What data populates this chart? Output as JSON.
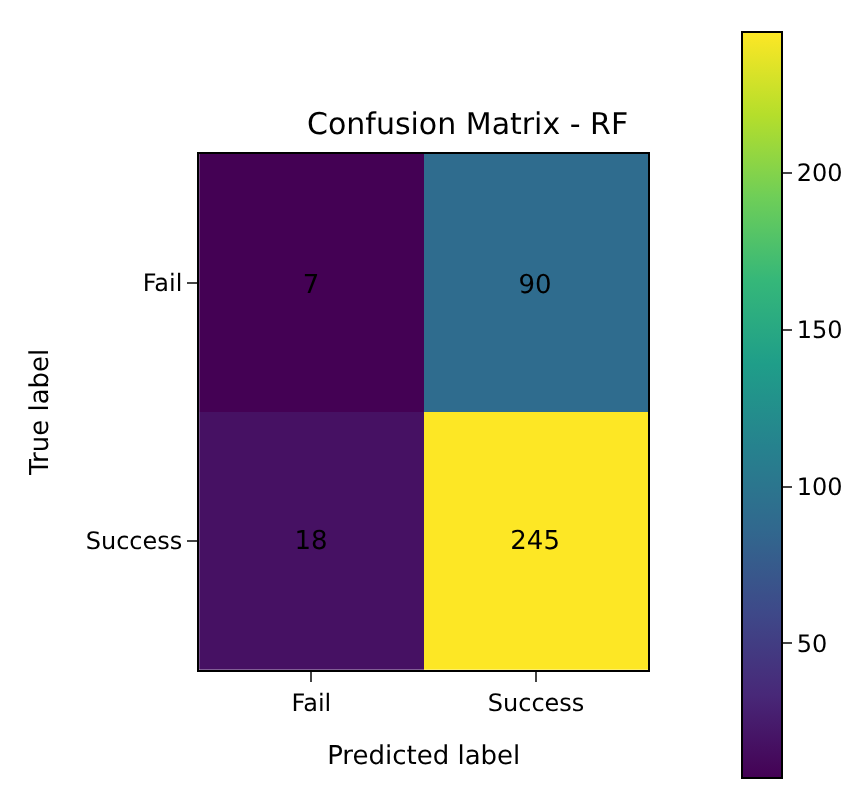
{
  "chart_data": {
    "type": "heatmap",
    "title": "Confusion Matrix - RF",
    "xlabel": "Predicted label",
    "ylabel": "True label",
    "categories": [
      "Fail",
      "Success"
    ],
    "y_categories": [
      "Fail",
      "Success"
    ],
    "cells": [
      [
        7,
        90
      ],
      [
        18,
        245
      ]
    ],
    "clim": [
      7,
      245
    ],
    "cticks": [
      50,
      100,
      150,
      200
    ],
    "data_labels": true
  }
}
